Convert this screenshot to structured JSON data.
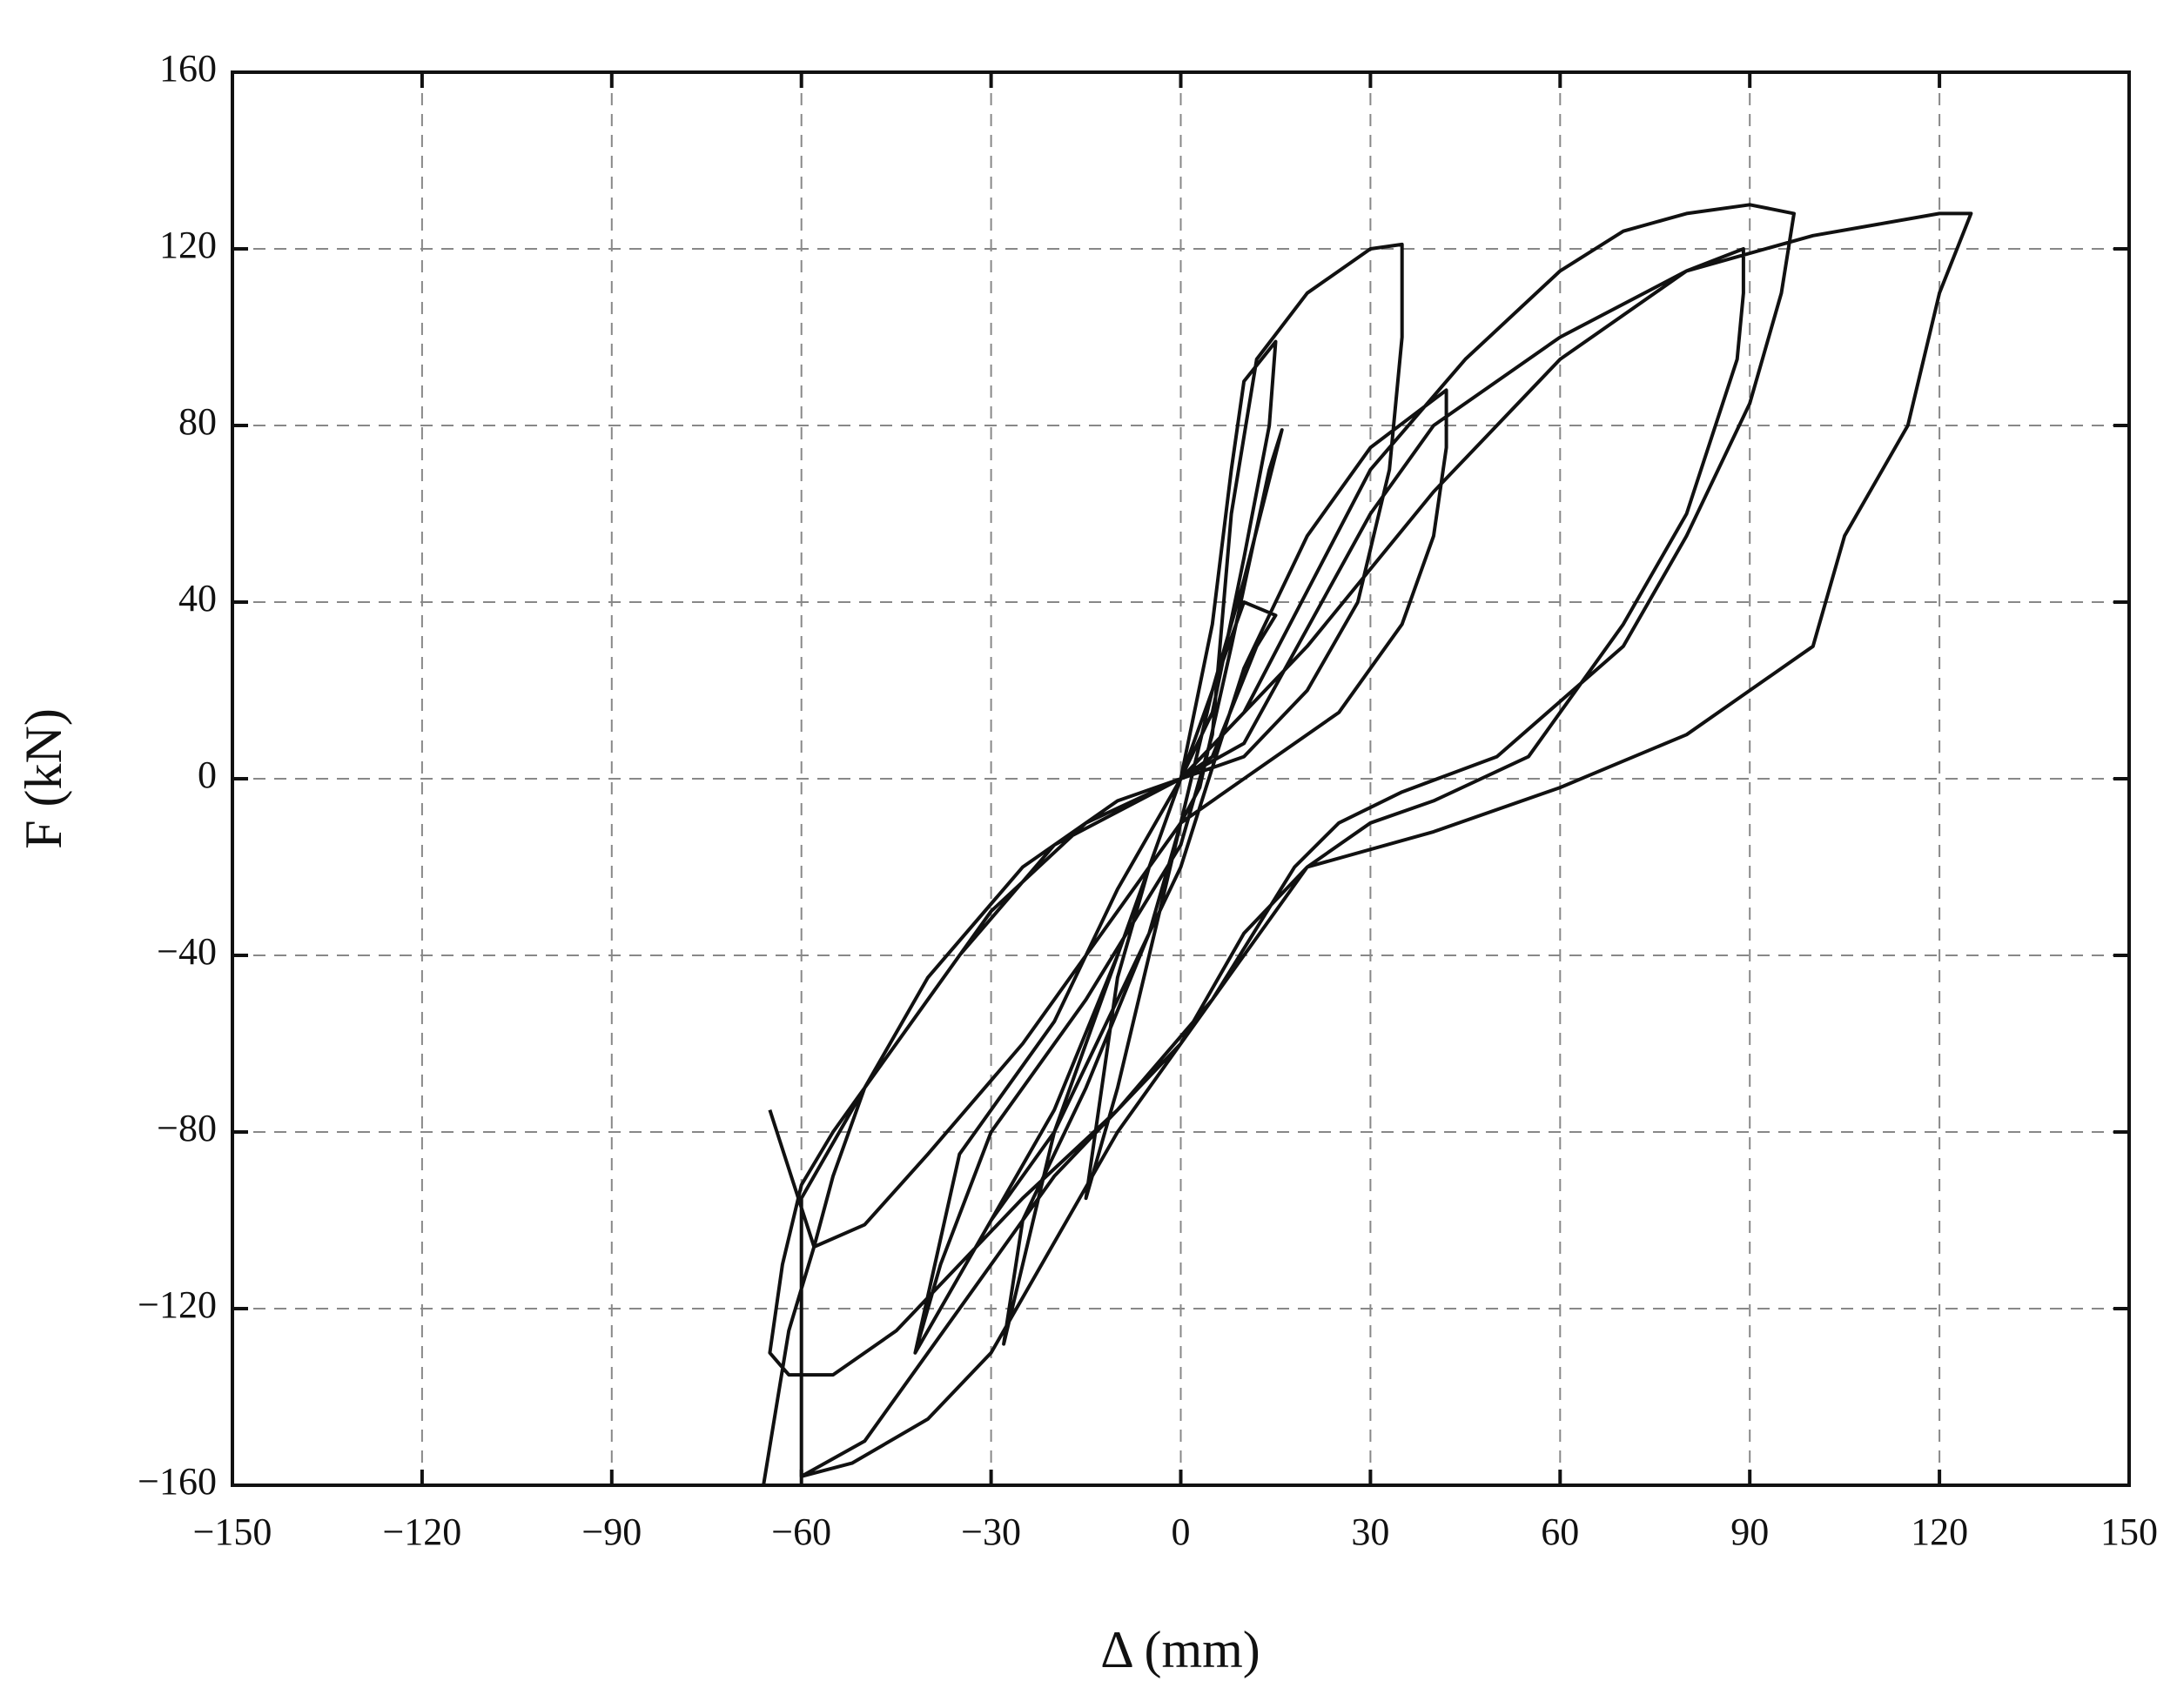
{
  "chart_data": {
    "type": "line",
    "x_label": "Δ (mm)",
    "y_label": "F (kN)",
    "xlim": [
      -150,
      150
    ],
    "ylim": [
      -160,
      160
    ],
    "xticks": [
      {
        "value": -150,
        "label": "−150"
      },
      {
        "value": -120,
        "label": "−120"
      },
      {
        "value": -90,
        "label": "−90"
      },
      {
        "value": -60,
        "label": "−60"
      },
      {
        "value": -30,
        "label": "−30"
      },
      0,
      30,
      60,
      90,
      120,
      150
    ],
    "yticks": [
      {
        "value": -160,
        "label": "−160"
      },
      {
        "value": -120,
        "label": "−120"
      },
      {
        "value": -80,
        "label": "−80"
      },
      {
        "value": -40,
        "label": "−40"
      },
      0,
      40,
      80,
      120,
      160
    ],
    "grid": true,
    "series": [
      {
        "color": "#111111",
        "x": [
          0,
          5,
          10,
          15,
          12,
          5,
          0,
          -5,
          -10,
          -15,
          -10,
          -5,
          0,
          5,
          10,
          16,
          14,
          8,
          3,
          0,
          -5,
          -15,
          -25,
          -28,
          -25,
          -20,
          -10,
          0,
          5,
          8,
          10,
          15,
          14,
          10,
          5,
          0,
          -10,
          -20,
          -30,
          -42,
          -38,
          -30,
          -15,
          0,
          5,
          8,
          12,
          20,
          30,
          35,
          35,
          33,
          28,
          20,
          10,
          0,
          -10,
          -20,
          -35,
          -42,
          -38,
          -30,
          -20,
          -10,
          0,
          10,
          20,
          30,
          42,
          42,
          40,
          35,
          25,
          10,
          0,
          -10,
          -25,
          -40,
          -50,
          -58,
          -55,
          -50,
          -40,
          -25,
          -10,
          0,
          10,
          30,
          40,
          60,
          80,
          89,
          89,
          88,
          80,
          70,
          55,
          40,
          30,
          20,
          10,
          0,
          -10,
          -25,
          -35,
          -45,
          -55,
          -62,
          -65,
          -63,
          -60,
          -55,
          -45,
          -30,
          -15,
          0,
          10,
          30,
          45,
          60,
          70,
          80,
          90,
          97,
          95,
          90,
          80,
          70,
          50,
          35,
          25,
          18,
          5,
          -10,
          -20,
          -30,
          -40,
          -50,
          -60,
          -60,
          -50,
          -35,
          -20,
          0,
          20,
          40,
          60,
          80,
          100,
          120,
          125,
          120,
          115,
          105,
          100,
          90,
          80,
          70,
          60,
          40,
          20,
          10,
          0,
          -10,
          -20,
          -30,
          -40,
          -52,
          -60,
          null,
          -66,
          -62,
          -58,
          -65
        ],
        "values": [
          0,
          20,
          40,
          37,
          30,
          5,
          0,
          -20,
          -45,
          -95,
          -70,
          -40,
          -10,
          20,
          45,
          79,
          70,
          30,
          -2,
          -10,
          -35,
          -70,
          -100,
          -128,
          -110,
          -80,
          -40,
          0,
          35,
          70,
          90,
          99,
          80,
          50,
          15,
          0,
          -40,
          -75,
          -100,
          -130,
          -110,
          -80,
          -50,
          -15,
          10,
          60,
          95,
          110,
          120,
          121,
          100,
          70,
          40,
          20,
          5,
          0,
          -25,
          -55,
          -85,
          -130,
          -120,
          -100,
          -80,
          -50,
          -20,
          25,
          55,
          75,
          88,
          75,
          55,
          35,
          15,
          0,
          -10,
          -30,
          -60,
          -85,
          -101,
          -106,
          -90,
          -70,
          -45,
          -20,
          -5,
          0,
          8,
          60,
          80,
          100,
          115,
          120,
          110,
          95,
          60,
          35,
          5,
          -5,
          -10,
          -20,
          -40,
          -60,
          -75,
          -95,
          -110,
          -125,
          -135,
          -135,
          -130,
          -110,
          -92,
          -80,
          -60,
          -30,
          -10,
          0,
          15,
          70,
          95,
          115,
          124,
          128,
          130,
          128,
          110,
          85,
          55,
          30,
          5,
          -3,
          -10,
          -20,
          -50,
          -75,
          -90,
          -110,
          -130,
          -150,
          -158,
          -95,
          -70,
          -40,
          -15,
          0,
          30,
          65,
          95,
          115,
          123,
          128,
          128,
          110,
          80,
          55,
          30,
          20,
          10,
          4,
          -2,
          -12,
          -20,
          -35,
          -60,
          -80,
          -105,
          -130,
          -145,
          -155,
          -158,
          null,
          -160,
          -125,
          -106,
          -75
        ]
      }
    ]
  }
}
